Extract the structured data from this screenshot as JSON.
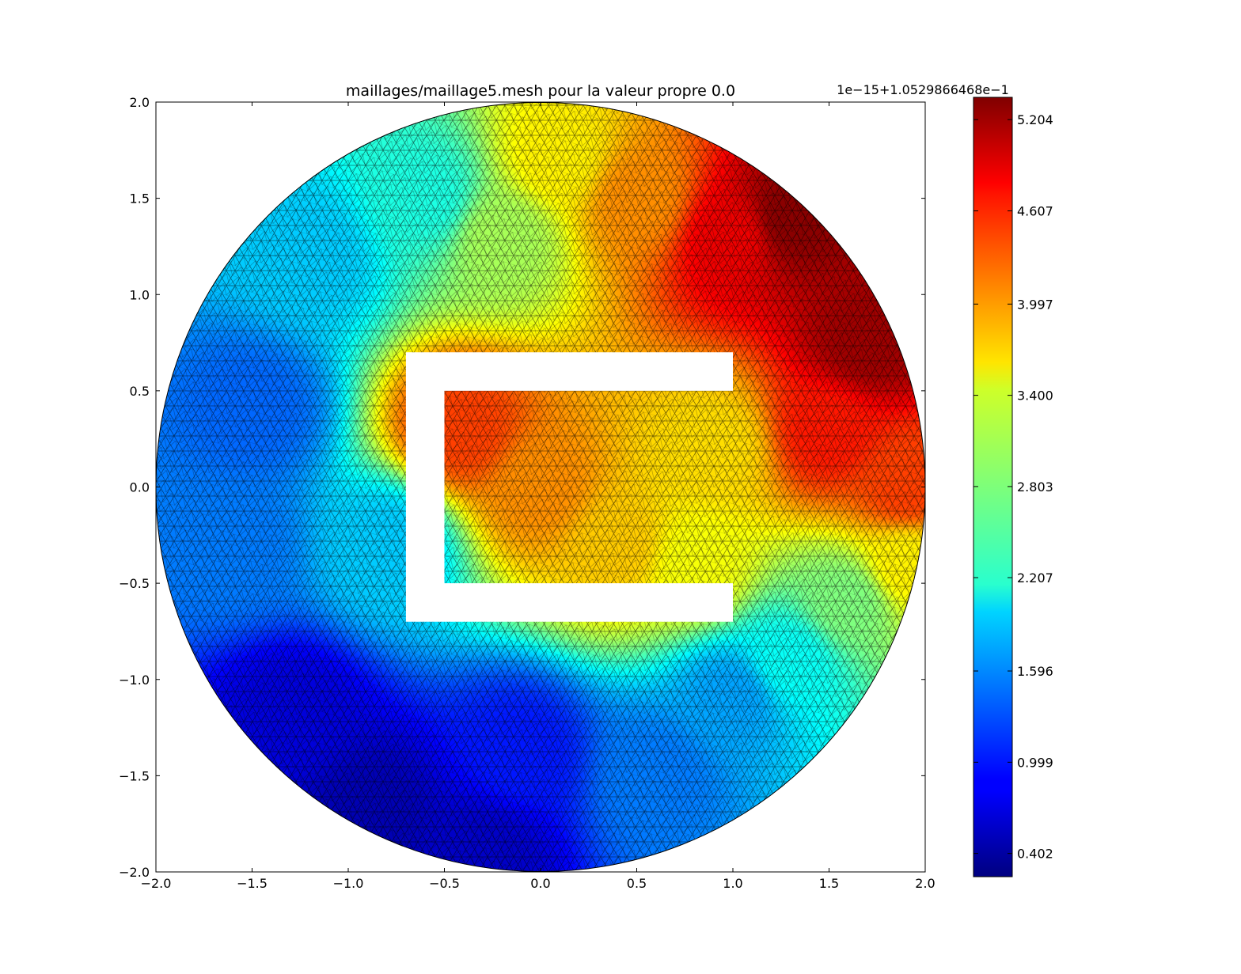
{
  "chart_data": {
    "type": "heatmap",
    "subtype": "triangulated-mesh-field",
    "title": "maillages/maillage5.mesh pour la valeur propre 0.0",
    "xlabel": "",
    "ylabel": "",
    "xlim": [
      -2.0,
      2.0
    ],
    "ylim": [
      -2.0,
      2.0
    ],
    "x_ticks": [
      -2.0,
      -1.5,
      -1.0,
      -0.5,
      0.0,
      0.5,
      1.0,
      1.5,
      2.0
    ],
    "x_tick_labels": [
      "−2.0",
      "−1.5",
      "−1.0",
      "−0.5",
      "0.0",
      "0.5",
      "1.0",
      "1.5",
      "2.0"
    ],
    "y_ticks": [
      2.0,
      1.5,
      1.0,
      0.5,
      0.0,
      -0.5,
      -1.0,
      -1.5,
      -2.0
    ],
    "y_tick_labels": [
      "2.0",
      "1.5",
      "1.0",
      "0.5",
      "0.0",
      "−0.5",
      "−1.0",
      "−1.5",
      "−2.0"
    ],
    "domain": {
      "disk": {
        "center": [
          0,
          0
        ],
        "radius": 2.0
      },
      "hole": [
        [
          -0.7,
          -0.7
        ],
        [
          1.0,
          -0.7
        ],
        [
          1.0,
          -0.5
        ],
        [
          -0.5,
          -0.5
        ],
        [
          -0.5,
          0.5
        ],
        [
          1.0,
          0.5
        ],
        [
          1.0,
          0.7
        ],
        [
          -0.7,
          0.7
        ]
      ]
    },
    "grid": false,
    "colormap": "jet",
    "colorbar": {
      "placement": "right",
      "offset_text": "1e−15+1.0529866468e−1",
      "vmin": 0.25,
      "vmax": 5.35,
      "ticks": [
        5.204,
        4.607,
        3.997,
        3.4,
        2.803,
        2.207,
        1.596,
        0.999,
        0.402
      ],
      "tick_labels": [
        "5.204",
        "4.607",
        "3.997",
        "3.400",
        "2.803",
        "2.207",
        "1.596",
        "0.999",
        "0.402"
      ]
    },
    "field_samples": [
      {
        "x": 1.3,
        "y": 1.4,
        "value": 5.3
      },
      {
        "x": 1.7,
        "y": 0.75,
        "value": 5.2
      },
      {
        "x": 1.0,
        "y": 1.3,
        "value": 4.8
      },
      {
        "x": 1.5,
        "y": 0.3,
        "value": 4.6
      },
      {
        "x": 1.9,
        "y": 0.0,
        "value": 4.4
      },
      {
        "x": 0.5,
        "y": 1.5,
        "value": 4.0
      },
      {
        "x": 0.1,
        "y": 1.7,
        "value": 3.5
      },
      {
        "x": -0.2,
        "y": 1.3,
        "value": 3.0
      },
      {
        "x": -0.6,
        "y": 1.5,
        "value": 2.3
      },
      {
        "x": -1.2,
        "y": 1.2,
        "value": 1.9
      },
      {
        "x": -1.5,
        "y": 0.4,
        "value": 1.4
      },
      {
        "x": -1.6,
        "y": -0.3,
        "value": 1.5
      },
      {
        "x": -0.8,
        "y": -0.3,
        "value": 1.9
      },
      {
        "x": -1.3,
        "y": -1.2,
        "value": 0.7
      },
      {
        "x": -0.9,
        "y": -1.7,
        "value": 0.5
      },
      {
        "x": -0.3,
        "y": -1.9,
        "value": 0.6
      },
      {
        "x": -0.1,
        "y": -1.4,
        "value": 1.0
      },
      {
        "x": 0.6,
        "y": -1.5,
        "value": 1.5
      },
      {
        "x": 1.0,
        "y": -1.1,
        "value": 1.7
      },
      {
        "x": 1.3,
        "y": -0.9,
        "value": 2.2
      },
      {
        "x": 1.6,
        "y": -0.6,
        "value": 2.8
      },
      {
        "x": 1.9,
        "y": -0.4,
        "value": 3.5
      },
      {
        "x": -0.4,
        "y": 0.3,
        "value": 4.4
      },
      {
        "x": 0.0,
        "y": 0.0,
        "value": 4.0
      },
      {
        "x": 0.4,
        "y": -0.3,
        "value": 3.7
      },
      {
        "x": 0.8,
        "y": -0.4,
        "value": 3.4
      },
      {
        "x": 0.9,
        "y": 0.2,
        "value": 3.6
      }
    ]
  }
}
